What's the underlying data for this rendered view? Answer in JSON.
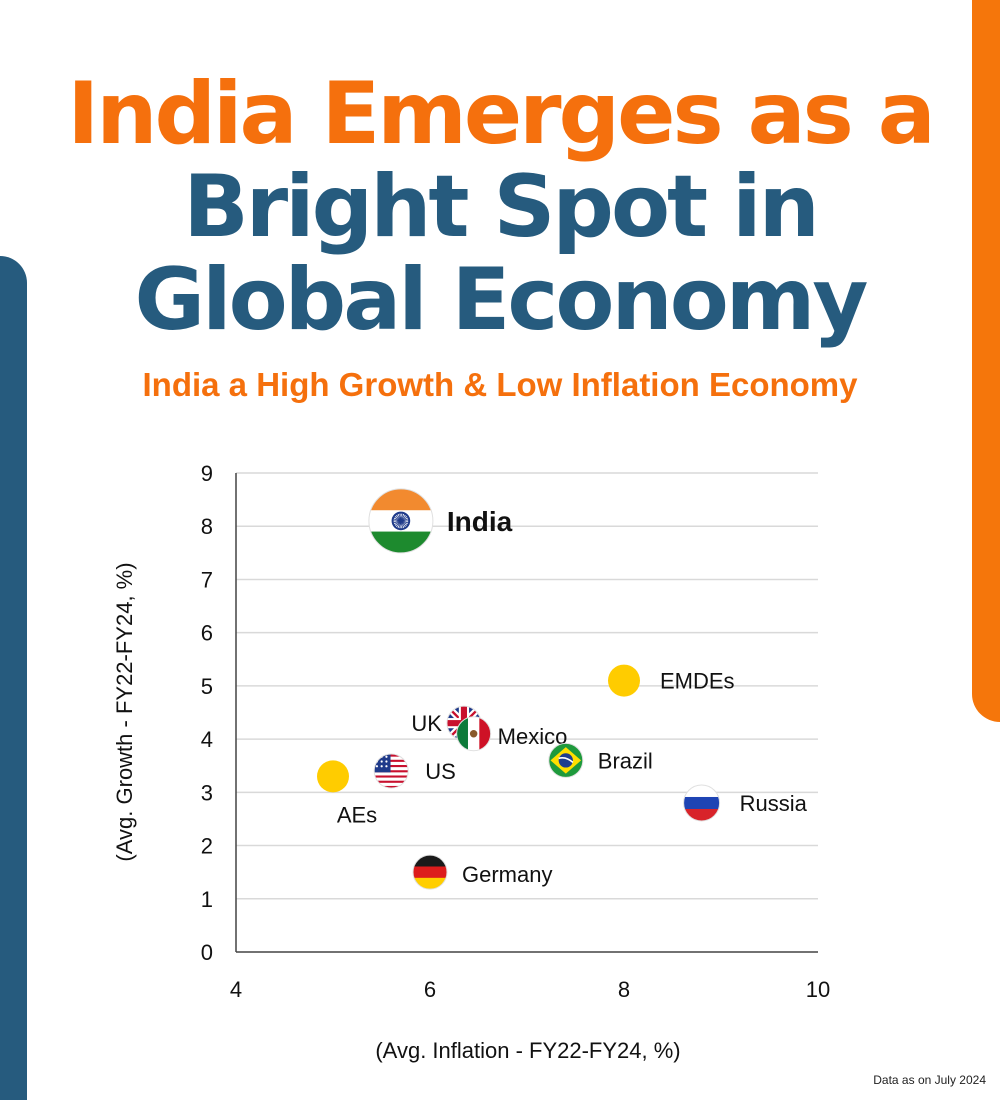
{
  "title_line1": "India Emerges as a",
  "title_line2": "Bright Spot in",
  "title_line3": "Global Economy",
  "subtitle": "India a High Growth & Low Inflation Economy",
  "footnote": "Data as on July 2024",
  "colors": {
    "orange": "#f5700d",
    "navy": "#265b7e",
    "marker": "#ffcc00"
  },
  "chart_data": {
    "type": "scatter",
    "xlabel": "(Avg. Inflation - FY22-FY24, %)",
    "ylabel": "(Avg. Growth - FY22-FY24, %)",
    "xlim": [
      4,
      10
    ],
    "ylim": [
      0,
      9
    ],
    "xticks": [
      4,
      6,
      8,
      10
    ],
    "yticks": [
      0,
      1,
      2,
      3,
      4,
      5,
      6,
      7,
      8,
      9
    ],
    "grid": "horizontal",
    "points": [
      {
        "label": "India",
        "x": 5.7,
        "y": 8.1,
        "marker": "india-flag"
      },
      {
        "label": "EMDEs",
        "x": 8.0,
        "y": 5.1,
        "marker": "yellow-dot"
      },
      {
        "label": "UK",
        "x": 6.35,
        "y": 4.3,
        "marker": "uk-flag"
      },
      {
        "label": "Mexico",
        "x": 6.45,
        "y": 4.1,
        "marker": "mexico-flag"
      },
      {
        "label": "Brazil",
        "x": 7.4,
        "y": 3.6,
        "marker": "brazil-flag"
      },
      {
        "label": "US",
        "x": 5.6,
        "y": 3.4,
        "marker": "us-flag"
      },
      {
        "label": "AEs",
        "x": 5.0,
        "y": 3.3,
        "marker": "yellow-dot"
      },
      {
        "label": "Russia",
        "x": 8.8,
        "y": 2.8,
        "marker": "russia-flag"
      },
      {
        "label": "Germany",
        "x": 6.0,
        "y": 1.5,
        "marker": "germany-flag"
      }
    ]
  }
}
